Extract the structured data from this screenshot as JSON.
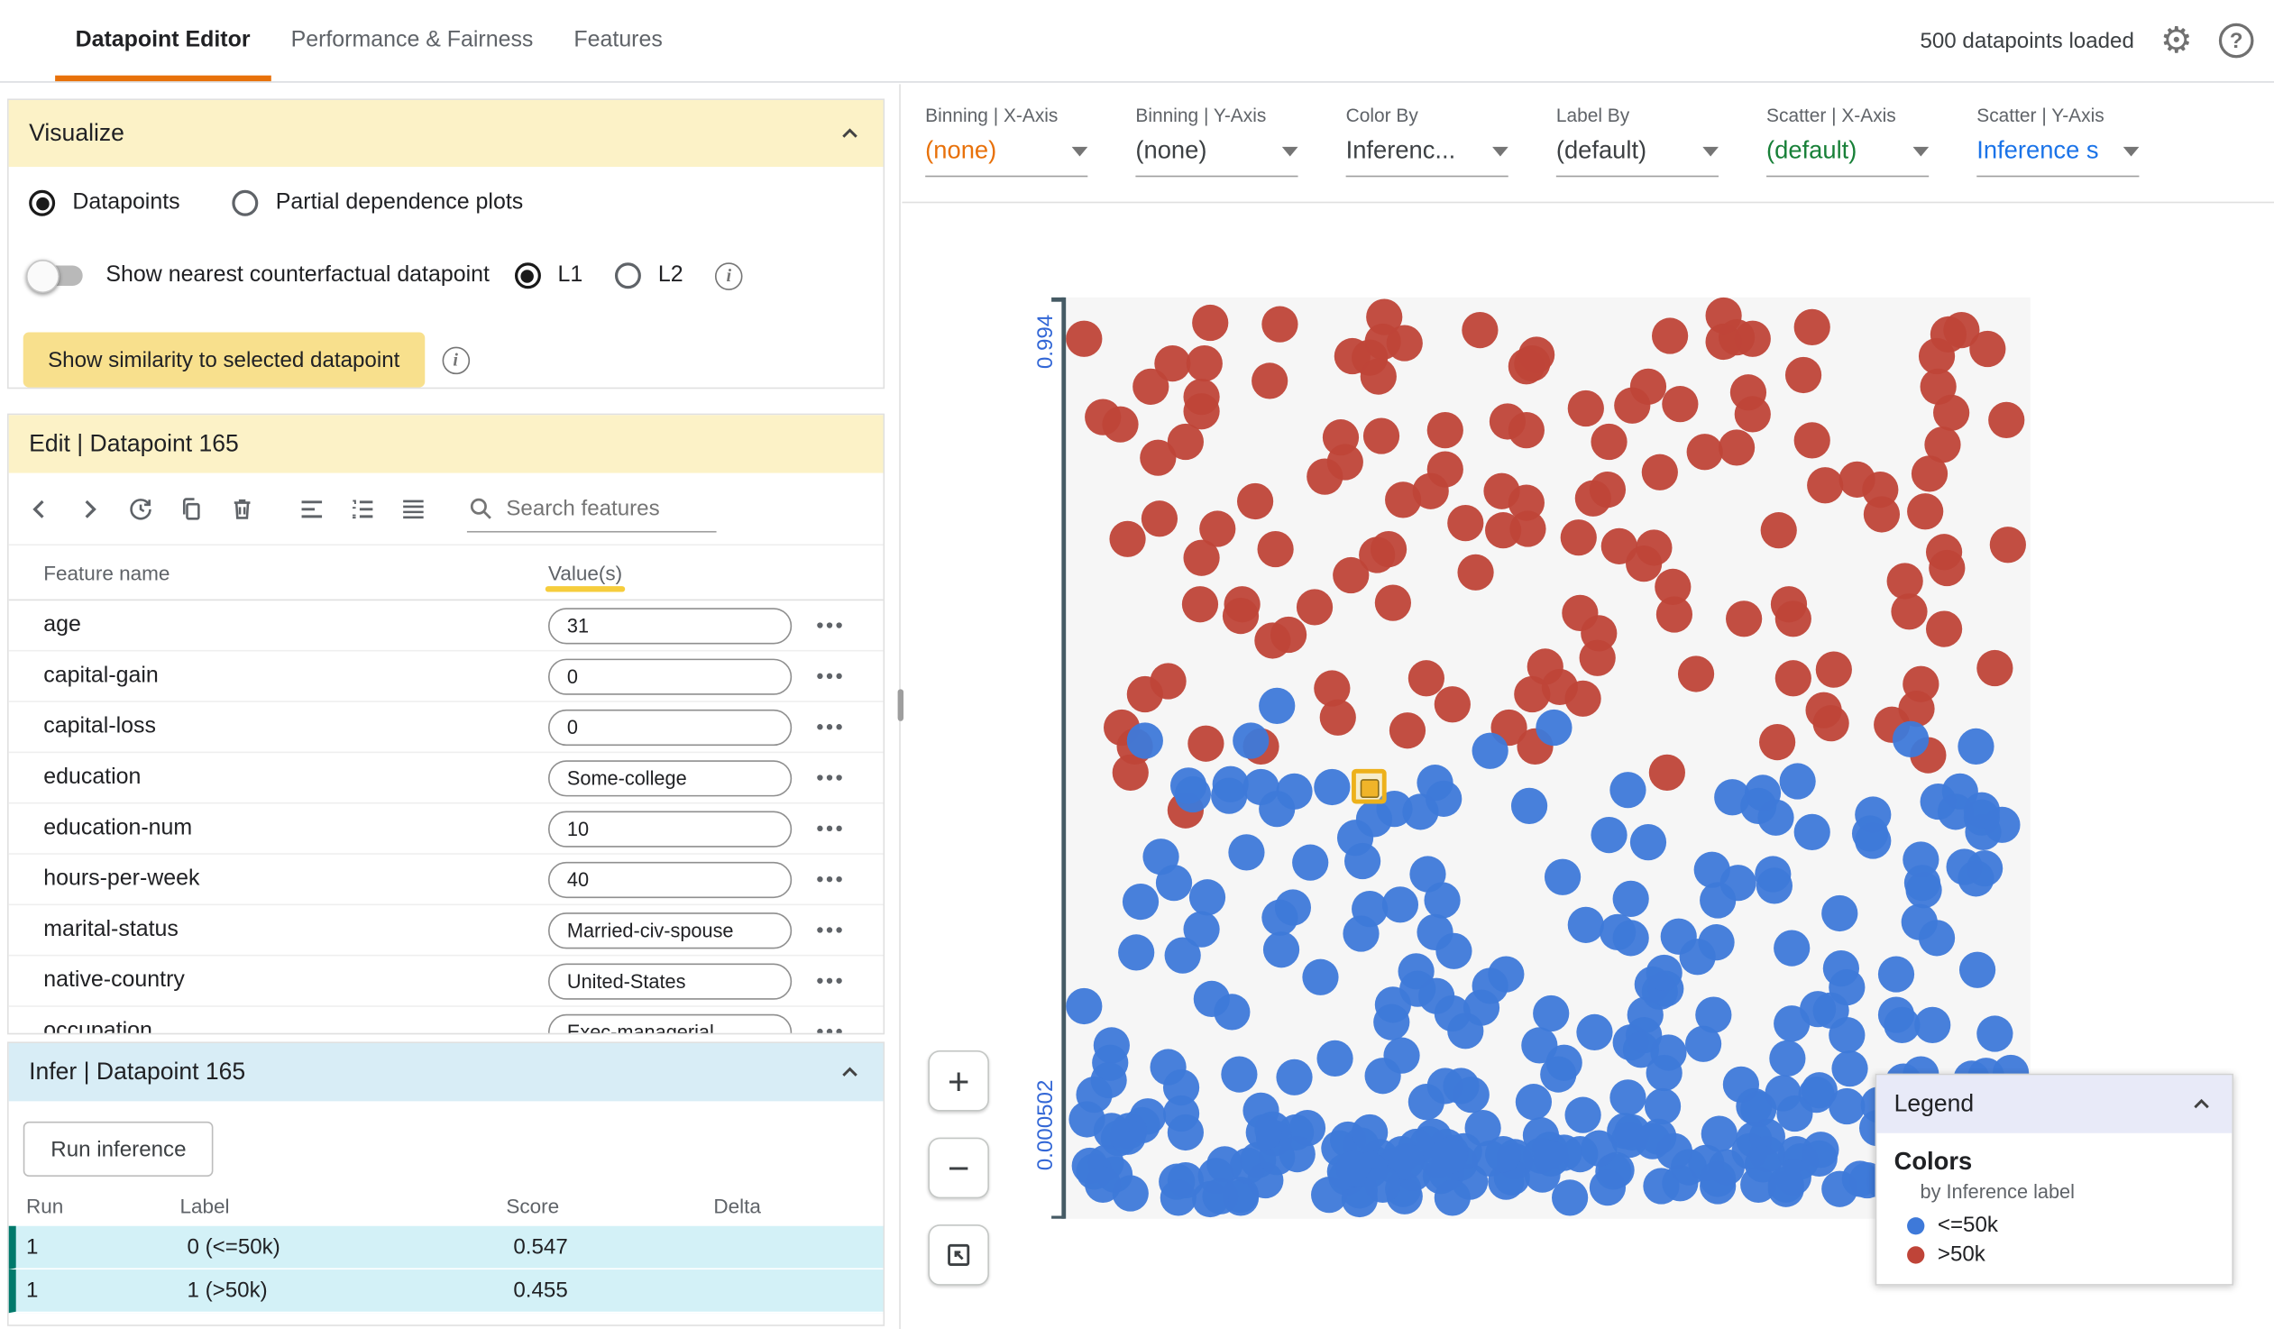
{
  "header": {
    "tabs": [
      {
        "label": "Datapoint Editor",
        "active": true
      },
      {
        "label": "Performance & Fairness",
        "active": false
      },
      {
        "label": "Features",
        "active": false
      }
    ],
    "status": "500 datapoints loaded"
  },
  "visualize": {
    "title": "Visualize",
    "datapoints_radio": "Datapoints",
    "pdp_radio": "Partial dependence plots",
    "counterfactual_toggle_label": "Show nearest counterfactual datapoint",
    "l1_label": "L1",
    "l2_label": "L2",
    "similarity_button": "Show similarity to selected datapoint"
  },
  "edit": {
    "title": "Edit | Datapoint 165",
    "search_placeholder": "Search features",
    "columns": {
      "name": "Feature name",
      "values": "Value(s)"
    },
    "features": [
      {
        "name": "age",
        "value": "31"
      },
      {
        "name": "capital-gain",
        "value": "0"
      },
      {
        "name": "capital-loss",
        "value": "0"
      },
      {
        "name": "education",
        "value": "Some-college"
      },
      {
        "name": "education-num",
        "value": "10"
      },
      {
        "name": "hours-per-week",
        "value": "40"
      },
      {
        "name": "marital-status",
        "value": "Married-civ-spouse"
      },
      {
        "name": "native-country",
        "value": "United-States"
      },
      {
        "name": "occupation",
        "value": "Exec-managerial"
      }
    ]
  },
  "infer": {
    "title": "Infer | Datapoint 165",
    "run_button": "Run inference",
    "columns": [
      "Run",
      "Label",
      "Score",
      "Delta"
    ],
    "rows": [
      {
        "run": "1",
        "label": "0 (<=50k)",
        "score": "0.547",
        "delta": ""
      },
      {
        "run": "1",
        "label": "1 (>50k)",
        "score": "0.455",
        "delta": ""
      }
    ]
  },
  "controls": [
    {
      "label": "Binning | X-Axis",
      "value": "(none)",
      "color": "#e8710a"
    },
    {
      "label": "Binning | Y-Axis",
      "value": "(none)",
      "color": "#3c4043"
    },
    {
      "label": "Color By",
      "value": "Inferenc...",
      "color": "#3c4043"
    },
    {
      "label": "Label By",
      "value": "(default)",
      "color": "#3c4043"
    },
    {
      "label": "Scatter | X-Axis",
      "value": "(default)",
      "color": "#188038"
    },
    {
      "label": "Scatter | Y-Axis",
      "value": "Inference s",
      "color": "#1a73e8"
    }
  ],
  "scatter": {
    "y_axis_top_label": "0.994",
    "y_axis_bottom_label": "0.000502",
    "colors": {
      "positive": "#bf4438",
      "negative": "#3e79d9",
      "selected": "#f0b429"
    },
    "selected": {
      "x": 0.308,
      "y": 0.532
    },
    "counts": {
      "red": 139,
      "blue": 298
    }
  },
  "zoom_controls": {
    "zoom_in": "+",
    "zoom_out": "−"
  },
  "legend": {
    "title": "Legend",
    "colors_heading": "Colors",
    "subtitle": "by Inference label",
    "items": [
      {
        "label": "<=50k",
        "color": "#3e79d9"
      },
      {
        "label": ">50k",
        "color": "#bf4438"
      }
    ]
  }
}
